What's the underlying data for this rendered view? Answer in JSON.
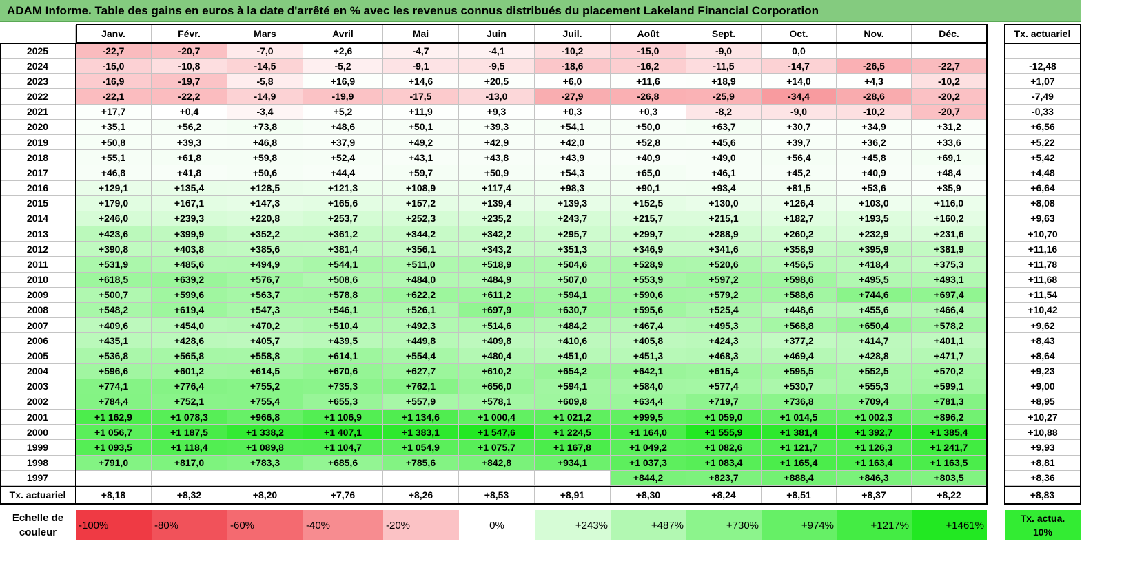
{
  "title": "ADAM Informe. Table des gains en euros à la date d'arrêté en % avec les revenus connus distribués du placement Lakeland Financial Corporation",
  "table": {
    "header": [
      "Janv.",
      "Févr.",
      "Mars",
      "Avril",
      "Mai",
      "Juin",
      "Juil.",
      "Août",
      "Sept.",
      "Oct.",
      "Nov.",
      "Déc."
    ],
    "rate_header": "Tx. actuariel",
    "rows": [
      {
        "year": "2025",
        "months": [
          "-22,7",
          "-20,7",
          "-7,0",
          "+2,6",
          "-4,7",
          "-4,1",
          "-10,2",
          "-15,0",
          "-9,0",
          "0,0",
          null,
          null
        ],
        "rate": null
      },
      {
        "year": "2024",
        "months": [
          "-15,0",
          "-10,8",
          "-14,5",
          "-5,2",
          "-9,1",
          "-9,5",
          "-18,6",
          "-16,2",
          "-11,5",
          "-14,7",
          "-26,5",
          "-22,7"
        ],
        "rate": "-12,48"
      },
      {
        "year": "2023",
        "months": [
          "-16,9",
          "-19,7",
          "-5,8",
          "+16,9",
          "+14,6",
          "+20,5",
          "+6,0",
          "+11,6",
          "+18,9",
          "+14,0",
          "+4,3",
          "-10,2"
        ],
        "rate": "+1,07"
      },
      {
        "year": "2022",
        "months": [
          "-22,1",
          "-22,2",
          "-14,9",
          "-19,9",
          "-17,5",
          "-13,0",
          "-27,9",
          "-26,8",
          "-25,9",
          "-34,4",
          "-28,6",
          "-20,2"
        ],
        "rate": "-7,49"
      },
      {
        "year": "2021",
        "months": [
          "+17,7",
          "+0,4",
          "-3,4",
          "+5,2",
          "+11,9",
          "+9,3",
          "+0,3",
          "+0,3",
          "-8,2",
          "-9,0",
          "-10,2",
          "-20,7"
        ],
        "rate": "-0,33"
      },
      {
        "year": "2020",
        "months": [
          "+35,1",
          "+56,2",
          "+73,8",
          "+48,6",
          "+50,1",
          "+39,3",
          "+54,1",
          "+50,0",
          "+63,7",
          "+30,7",
          "+34,9",
          "+31,2"
        ],
        "rate": "+6,56"
      },
      {
        "year": "2019",
        "months": [
          "+50,8",
          "+39,3",
          "+46,8",
          "+37,9",
          "+49,2",
          "+42,9",
          "+42,0",
          "+52,8",
          "+45,6",
          "+39,7",
          "+36,2",
          "+33,6"
        ],
        "rate": "+5,22"
      },
      {
        "year": "2018",
        "months": [
          "+55,1",
          "+61,8",
          "+59,8",
          "+52,4",
          "+43,1",
          "+43,8",
          "+43,9",
          "+40,9",
          "+49,0",
          "+56,4",
          "+45,8",
          "+69,1"
        ],
        "rate": "+5,42"
      },
      {
        "year": "2017",
        "months": [
          "+46,8",
          "+41,8",
          "+50,6",
          "+44,4",
          "+59,7",
          "+50,9",
          "+54,3",
          "+65,0",
          "+46,1",
          "+45,2",
          "+40,9",
          "+48,4"
        ],
        "rate": "+4,48"
      },
      {
        "year": "2016",
        "months": [
          "+129,1",
          "+135,4",
          "+128,5",
          "+121,3",
          "+108,9",
          "+117,4",
          "+98,3",
          "+90,1",
          "+93,4",
          "+81,5",
          "+53,6",
          "+35,9"
        ],
        "rate": "+6,64"
      },
      {
        "year": "2015",
        "months": [
          "+179,0",
          "+167,1",
          "+147,3",
          "+165,6",
          "+157,2",
          "+139,4",
          "+139,3",
          "+152,5",
          "+130,0",
          "+126,4",
          "+103,0",
          "+116,0"
        ],
        "rate": "+8,08"
      },
      {
        "year": "2014",
        "months": [
          "+246,0",
          "+239,3",
          "+220,8",
          "+253,7",
          "+252,3",
          "+235,2",
          "+243,7",
          "+215,7",
          "+215,1",
          "+182,7",
          "+193,5",
          "+160,2"
        ],
        "rate": "+9,63"
      },
      {
        "year": "2013",
        "months": [
          "+423,6",
          "+399,9",
          "+352,2",
          "+361,2",
          "+344,2",
          "+342,2",
          "+295,7",
          "+299,7",
          "+288,9",
          "+260,2",
          "+232,9",
          "+231,6"
        ],
        "rate": "+10,70"
      },
      {
        "year": "2012",
        "months": [
          "+390,8",
          "+403,8",
          "+385,6",
          "+381,4",
          "+356,1",
          "+343,2",
          "+351,3",
          "+346,9",
          "+341,6",
          "+358,9",
          "+395,9",
          "+381,9"
        ],
        "rate": "+11,16"
      },
      {
        "year": "2011",
        "months": [
          "+531,9",
          "+485,6",
          "+494,9",
          "+544,1",
          "+511,0",
          "+518,9",
          "+504,6",
          "+528,9",
          "+520,6",
          "+456,5",
          "+418,4",
          "+375,3"
        ],
        "rate": "+11,78"
      },
      {
        "year": "2010",
        "months": [
          "+618,5",
          "+639,2",
          "+576,7",
          "+508,6",
          "+484,0",
          "+484,9",
          "+507,0",
          "+553,9",
          "+597,2",
          "+598,6",
          "+495,5",
          "+493,1"
        ],
        "rate": "+11,68"
      },
      {
        "year": "2009",
        "months": [
          "+500,7",
          "+599,6",
          "+563,7",
          "+578,8",
          "+622,2",
          "+611,2",
          "+594,1",
          "+590,6",
          "+579,2",
          "+588,6",
          "+744,6",
          "+697,4"
        ],
        "rate": "+11,54"
      },
      {
        "year": "2008",
        "months": [
          "+548,2",
          "+619,4",
          "+547,3",
          "+546,1",
          "+526,1",
          "+697,9",
          "+630,7",
          "+595,6",
          "+525,4",
          "+448,6",
          "+455,6",
          "+466,4"
        ],
        "rate": "+10,42"
      },
      {
        "year": "2007",
        "months": [
          "+409,6",
          "+454,0",
          "+470,2",
          "+510,4",
          "+492,3",
          "+514,6",
          "+484,2",
          "+467,4",
          "+495,3",
          "+568,8",
          "+650,4",
          "+578,2"
        ],
        "rate": "+9,62"
      },
      {
        "year": "2006",
        "months": [
          "+435,1",
          "+428,6",
          "+405,7",
          "+439,5",
          "+449,8",
          "+409,8",
          "+410,6",
          "+405,8",
          "+424,3",
          "+377,2",
          "+414,7",
          "+401,1"
        ],
        "rate": "+8,43"
      },
      {
        "year": "2005",
        "months": [
          "+536,8",
          "+565,8",
          "+558,8",
          "+614,1",
          "+554,4",
          "+480,4",
          "+451,0",
          "+451,3",
          "+468,3",
          "+469,4",
          "+428,8",
          "+471,7"
        ],
        "rate": "+8,64"
      },
      {
        "year": "2004",
        "months": [
          "+596,6",
          "+601,2",
          "+614,5",
          "+670,6",
          "+627,7",
          "+610,2",
          "+654,2",
          "+642,1",
          "+615,4",
          "+595,5",
          "+552,5",
          "+570,2"
        ],
        "rate": "+9,23"
      },
      {
        "year": "2003",
        "months": [
          "+774,1",
          "+776,4",
          "+755,2",
          "+735,3",
          "+762,1",
          "+656,0",
          "+594,1",
          "+584,0",
          "+577,4",
          "+530,7",
          "+555,3",
          "+599,1"
        ],
        "rate": "+9,00"
      },
      {
        "year": "2002",
        "months": [
          "+784,4",
          "+752,1",
          "+755,4",
          "+655,3",
          "+557,9",
          "+578,1",
          "+609,8",
          "+634,4",
          "+719,7",
          "+736,8",
          "+709,4",
          "+781,3"
        ],
        "rate": "+8,95"
      },
      {
        "year": "2001",
        "months": [
          "+1 162,9",
          "+1 078,3",
          "+966,8",
          "+1 106,9",
          "+1 134,6",
          "+1 000,4",
          "+1 021,2",
          "+999,5",
          "+1 059,0",
          "+1 014,5",
          "+1 002,3",
          "+896,2"
        ],
        "rate": "+10,27"
      },
      {
        "year": "2000",
        "months": [
          "+1 056,7",
          "+1 187,5",
          "+1 338,2",
          "+1 407,1",
          "+1 383,1",
          "+1 547,6",
          "+1 224,5",
          "+1 164,0",
          "+1 555,9",
          "+1 381,4",
          "+1 392,7",
          "+1 385,4"
        ],
        "rate": "+10,88"
      },
      {
        "year": "1999",
        "months": [
          "+1 093,5",
          "+1 118,4",
          "+1 089,8",
          "+1 104,7",
          "+1 054,9",
          "+1 075,7",
          "+1 167,8",
          "+1 049,2",
          "+1 082,6",
          "+1 121,7",
          "+1 126,3",
          "+1 241,7"
        ],
        "rate": "+9,93"
      },
      {
        "year": "1998",
        "months": [
          "+791,0",
          "+817,0",
          "+783,3",
          "+685,6",
          "+785,6",
          "+842,8",
          "+934,1",
          "+1 037,3",
          "+1 083,4",
          "+1 165,4",
          "+1 163,4",
          "+1 163,5"
        ],
        "rate": "+8,81"
      },
      {
        "year": "1997",
        "months": [
          null,
          null,
          null,
          null,
          null,
          null,
          null,
          "+844,2",
          "+823,7",
          "+888,4",
          "+846,3",
          "+803,5"
        ],
        "rate": "+8,36"
      }
    ],
    "summary": {
      "label": "Tx. actuariel",
      "months": [
        "+8,18",
        "+8,32",
        "+8,20",
        "+7,76",
        "+8,26",
        "+8,53",
        "+8,91",
        "+8,30",
        "+8,24",
        "+8,51",
        "+8,37",
        "+8,22"
      ],
      "rate": "+8,83"
    }
  },
  "legend": {
    "label": "Echelle de couleur",
    "stops": [
      {
        "label": "-100%",
        "color": "#ef3a44"
      },
      {
        "label": "-80%",
        "color": "#f1525a"
      },
      {
        "label": "-60%",
        "color": "#f46a70"
      },
      {
        "label": "-40%",
        "color": "#f78c90"
      },
      {
        "label": "-20%",
        "color": "#fbc2c5"
      },
      {
        "label": "0%",
        "color": "#ffffff"
      },
      {
        "label": "+243%",
        "color": "#d6fcd6"
      },
      {
        "label": "+487%",
        "color": "#b2f8b2"
      },
      {
        "label": "+730%",
        "color": "#8cf48c"
      },
      {
        "label": "+974%",
        "color": "#66f066"
      },
      {
        "label": "+1217%",
        "color": "#44ec44"
      },
      {
        "label": "+1461%",
        "color": "#22e822"
      }
    ],
    "rate_label": "Tx. actua. 10%",
    "rate_color": "#33ec33"
  }
}
